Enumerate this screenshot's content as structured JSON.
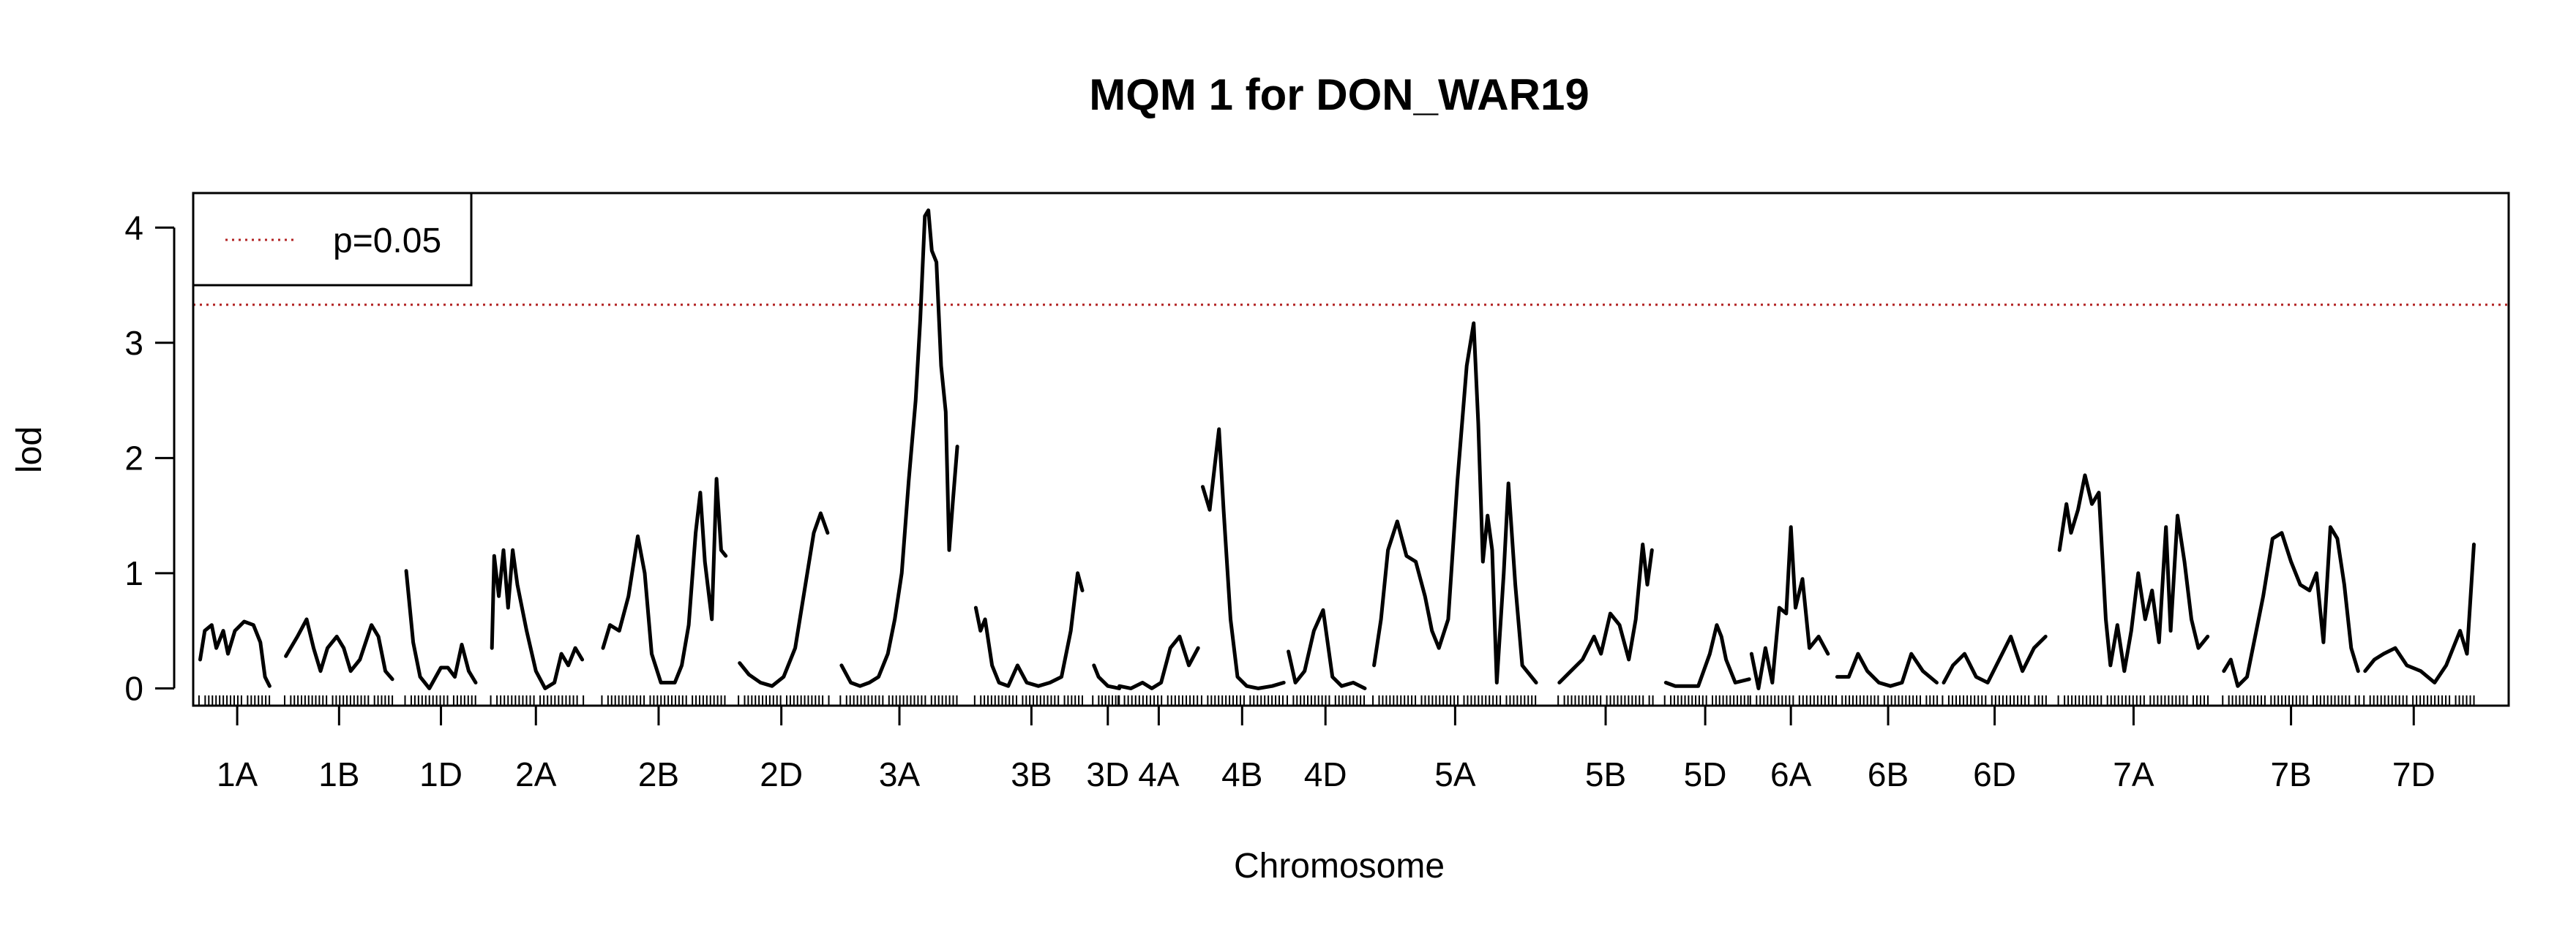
{
  "chart_data": {
    "type": "line",
    "title": "MQM 1 for DON_WAR19",
    "xlabel": "Chromosome",
    "ylabel": "lod",
    "ylim": [
      -0.15,
      4.3
    ],
    "yticks": [
      0,
      1,
      2,
      3,
      4
    ],
    "x_unit": "position index along genome (0–100)",
    "xlim": [
      0,
      100
    ],
    "grid": false,
    "legend": {
      "placement": "top-left",
      "entries": [
        {
          "label": "p=0.05",
          "color": "#b22222",
          "style": "dotted"
        }
      ]
    },
    "threshold": {
      "label": "p=0.05",
      "value": 3.33,
      "color": "#b22222"
    },
    "chromosomes": [
      {
        "name": "1A",
        "start": 0.3,
        "end": 3.3,
        "label_x": 1.9,
        "points": [
          [
            0.3,
            0.25
          ],
          [
            0.5,
            0.5
          ],
          [
            0.8,
            0.55
          ],
          [
            1.0,
            0.35
          ],
          [
            1.3,
            0.5
          ],
          [
            1.5,
            0.3
          ],
          [
            1.8,
            0.5
          ],
          [
            2.2,
            0.58
          ],
          [
            2.6,
            0.55
          ],
          [
            2.9,
            0.4
          ],
          [
            3.1,
            0.1
          ],
          [
            3.3,
            0.02
          ]
        ]
      },
      {
        "name": "1B",
        "start": 4.0,
        "end": 8.6,
        "label_x": 6.3,
        "points": [
          [
            4.0,
            0.28
          ],
          [
            4.5,
            0.45
          ],
          [
            4.9,
            0.6
          ],
          [
            5.2,
            0.35
          ],
          [
            5.5,
            0.15
          ],
          [
            5.8,
            0.35
          ],
          [
            6.2,
            0.45
          ],
          [
            6.5,
            0.35
          ],
          [
            6.8,
            0.15
          ],
          [
            7.2,
            0.25
          ],
          [
            7.7,
            0.55
          ],
          [
            8.0,
            0.45
          ],
          [
            8.3,
            0.15
          ],
          [
            8.6,
            0.08
          ]
        ]
      },
      {
        "name": "1D",
        "start": 9.2,
        "end": 12.2,
        "label_x": 10.7,
        "points": [
          [
            9.2,
            1.02
          ],
          [
            9.5,
            0.4
          ],
          [
            9.8,
            0.1
          ],
          [
            10.2,
            0.0
          ],
          [
            10.7,
            0.18
          ],
          [
            11.0,
            0.18
          ],
          [
            11.3,
            0.1
          ],
          [
            11.6,
            0.38
          ],
          [
            11.9,
            0.15
          ],
          [
            12.2,
            0.05
          ]
        ]
      },
      {
        "name": "2A",
        "start": 12.9,
        "end": 16.8,
        "label_x": 14.8,
        "points": [
          [
            12.9,
            0.35
          ],
          [
            13.0,
            1.15
          ],
          [
            13.2,
            0.8
          ],
          [
            13.4,
            1.2
          ],
          [
            13.6,
            0.7
          ],
          [
            13.8,
            1.2
          ],
          [
            14.0,
            0.9
          ],
          [
            14.4,
            0.5
          ],
          [
            14.8,
            0.15
          ],
          [
            15.2,
            0.0
          ],
          [
            15.6,
            0.05
          ],
          [
            15.9,
            0.3
          ],
          [
            16.2,
            0.2
          ],
          [
            16.5,
            0.35
          ],
          [
            16.8,
            0.25
          ]
        ]
      },
      {
        "name": "2B",
        "start": 17.7,
        "end": 23.0,
        "label_x": 20.1,
        "points": [
          [
            17.7,
            0.35
          ],
          [
            18.0,
            0.55
          ],
          [
            18.4,
            0.5
          ],
          [
            18.8,
            0.8
          ],
          [
            19.2,
            1.32
          ],
          [
            19.5,
            1.0
          ],
          [
            19.8,
            0.3
          ],
          [
            20.2,
            0.05
          ],
          [
            20.8,
            0.05
          ],
          [
            21.1,
            0.2
          ],
          [
            21.4,
            0.55
          ],
          [
            21.7,
            1.35
          ],
          [
            21.9,
            1.7
          ],
          [
            22.1,
            1.1
          ],
          [
            22.4,
            0.6
          ],
          [
            22.6,
            1.82
          ],
          [
            22.8,
            1.2
          ],
          [
            23.0,
            1.15
          ]
        ]
      },
      {
        "name": "2D",
        "start": 23.6,
        "end": 27.4,
        "label_x": 25.4,
        "points": [
          [
            23.6,
            0.22
          ],
          [
            24.0,
            0.12
          ],
          [
            24.5,
            0.05
          ],
          [
            25.0,
            0.02
          ],
          [
            25.5,
            0.1
          ],
          [
            26.0,
            0.35
          ],
          [
            26.4,
            0.85
          ],
          [
            26.8,
            1.35
          ],
          [
            27.1,
            1.52
          ],
          [
            27.4,
            1.35
          ]
        ]
      },
      {
        "name": "3A",
        "start": 28.0,
        "end": 33.0,
        "label_x": 30.5,
        "points": [
          [
            28.0,
            0.2
          ],
          [
            28.4,
            0.05
          ],
          [
            28.8,
            0.02
          ],
          [
            29.2,
            0.05
          ],
          [
            29.6,
            0.1
          ],
          [
            30.0,
            0.3
          ],
          [
            30.3,
            0.6
          ],
          [
            30.6,
            1.0
          ],
          [
            30.9,
            1.8
          ],
          [
            31.2,
            2.5
          ],
          [
            31.4,
            3.2
          ],
          [
            31.6,
            4.1
          ],
          [
            31.75,
            4.15
          ],
          [
            31.9,
            3.8
          ],
          [
            32.1,
            3.7
          ],
          [
            32.3,
            2.8
          ],
          [
            32.5,
            2.4
          ],
          [
            32.65,
            1.2
          ],
          [
            32.8,
            1.6
          ],
          [
            33.0,
            2.1
          ]
        ]
      },
      {
        "name": "3B",
        "start": 33.8,
        "end": 38.4,
        "label_x": 36.2,
        "points": [
          [
            33.8,
            0.7
          ],
          [
            34.0,
            0.5
          ],
          [
            34.2,
            0.6
          ],
          [
            34.5,
            0.2
          ],
          [
            34.8,
            0.05
          ],
          [
            35.2,
            0.02
          ],
          [
            35.6,
            0.2
          ],
          [
            36.0,
            0.05
          ],
          [
            36.5,
            0.02
          ],
          [
            37.0,
            0.05
          ],
          [
            37.5,
            0.1
          ],
          [
            37.9,
            0.5
          ],
          [
            38.2,
            1.0
          ],
          [
            38.4,
            0.85
          ]
        ]
      },
      {
        "name": "3D",
        "start": 38.9,
        "end": 40.0,
        "label_x": 39.5,
        "points": [
          [
            38.9,
            0.2
          ],
          [
            39.1,
            0.1
          ],
          [
            39.5,
            0.02
          ],
          [
            40.0,
            0.0
          ]
        ]
      },
      {
        "name": "4A",
        "start": 40.0,
        "end": 43.4,
        "label_x": 41.7,
        "points": [
          [
            40.0,
            0.02
          ],
          [
            40.5,
            0.0
          ],
          [
            41.0,
            0.05
          ],
          [
            41.4,
            0.0
          ],
          [
            41.8,
            0.05
          ],
          [
            42.2,
            0.35
          ],
          [
            42.6,
            0.45
          ],
          [
            43.0,
            0.2
          ],
          [
            43.4,
            0.35
          ]
        ]
      },
      {
        "name": "4B",
        "start": 43.6,
        "end": 47.1,
        "label_x": 45.3,
        "points": [
          [
            43.6,
            1.75
          ],
          [
            43.9,
            1.55
          ],
          [
            44.1,
            1.9
          ],
          [
            44.3,
            2.25
          ],
          [
            44.5,
            1.55
          ],
          [
            44.8,
            0.6
          ],
          [
            45.1,
            0.1
          ],
          [
            45.5,
            0.02
          ],
          [
            46.0,
            0.0
          ],
          [
            46.6,
            0.02
          ],
          [
            47.1,
            0.05
          ]
        ]
      },
      {
        "name": "4D",
        "start": 47.3,
        "end": 50.6,
        "label_x": 48.9,
        "points": [
          [
            47.3,
            0.32
          ],
          [
            47.6,
            0.05
          ],
          [
            48.0,
            0.15
          ],
          [
            48.4,
            0.5
          ],
          [
            48.8,
            0.68
          ],
          [
            49.2,
            0.1
          ],
          [
            49.6,
            0.02
          ],
          [
            50.1,
            0.05
          ],
          [
            50.6,
            0.0
          ]
        ]
      },
      {
        "name": "5A",
        "start": 51.0,
        "end": 58.0,
        "label_x": 54.5,
        "points": [
          [
            51.0,
            0.2
          ],
          [
            51.3,
            0.6
          ],
          [
            51.6,
            1.2
          ],
          [
            52.0,
            1.45
          ],
          [
            52.4,
            1.15
          ],
          [
            52.8,
            1.1
          ],
          [
            53.2,
            0.8
          ],
          [
            53.5,
            0.5
          ],
          [
            53.8,
            0.35
          ],
          [
            54.2,
            0.6
          ],
          [
            54.6,
            1.8
          ],
          [
            55.0,
            2.8
          ],
          [
            55.3,
            3.17
          ],
          [
            55.5,
            2.3
          ],
          [
            55.7,
            1.1
          ],
          [
            55.9,
            1.5
          ],
          [
            56.1,
            1.2
          ],
          [
            56.3,
            0.05
          ],
          [
            56.6,
            1.0
          ],
          [
            56.8,
            1.78
          ],
          [
            57.1,
            0.9
          ],
          [
            57.4,
            0.2
          ],
          [
            58.0,
            0.05
          ]
        ]
      },
      {
        "name": "5B",
        "start": 59.0,
        "end": 63.0,
        "label_x": 61.0,
        "points": [
          [
            59.0,
            0.05
          ],
          [
            59.5,
            0.15
          ],
          [
            60.0,
            0.25
          ],
          [
            60.5,
            0.45
          ],
          [
            60.8,
            0.3
          ],
          [
            61.2,
            0.65
          ],
          [
            61.6,
            0.55
          ],
          [
            62.0,
            0.25
          ],
          [
            62.3,
            0.6
          ],
          [
            62.6,
            1.25
          ],
          [
            62.8,
            0.9
          ],
          [
            63.0,
            1.2
          ]
        ]
      },
      {
        "name": "5D",
        "start": 63.6,
        "end": 67.2,
        "label_x": 65.3,
        "points": [
          [
            63.6,
            0.05
          ],
          [
            64.0,
            0.02
          ],
          [
            64.5,
            0.02
          ],
          [
            65.0,
            0.02
          ],
          [
            65.5,
            0.3
          ],
          [
            65.8,
            0.55
          ],
          [
            66.0,
            0.45
          ],
          [
            66.2,
            0.25
          ],
          [
            66.6,
            0.05
          ],
          [
            67.2,
            0.08
          ]
        ]
      },
      {
        "name": "6A",
        "start": 67.3,
        "end": 71.0,
        "label_x": 69.0,
        "points": [
          [
            67.3,
            0.3
          ],
          [
            67.6,
            0.0
          ],
          [
            67.9,
            0.35
          ],
          [
            68.2,
            0.05
          ],
          [
            68.5,
            0.7
          ],
          [
            68.8,
            0.65
          ],
          [
            69.0,
            1.4
          ],
          [
            69.2,
            0.7
          ],
          [
            69.5,
            0.95
          ],
          [
            69.8,
            0.35
          ],
          [
            70.2,
            0.45
          ],
          [
            70.6,
            0.3
          ]
        ]
      },
      {
        "name": "6B",
        "start": 71.0,
        "end": 75.3,
        "label_x": 73.2,
        "points": [
          [
            71.0,
            0.1
          ],
          [
            71.5,
            0.1
          ],
          [
            71.9,
            0.3
          ],
          [
            72.3,
            0.15
          ],
          [
            72.8,
            0.05
          ],
          [
            73.3,
            0.02
          ],
          [
            73.8,
            0.05
          ],
          [
            74.2,
            0.3
          ],
          [
            74.7,
            0.15
          ],
          [
            75.3,
            0.05
          ]
        ]
      },
      {
        "name": "6D",
        "start": 75.6,
        "end": 80.0,
        "label_x": 77.8,
        "points": [
          [
            75.6,
            0.05
          ],
          [
            76.0,
            0.2
          ],
          [
            76.5,
            0.3
          ],
          [
            77.0,
            0.1
          ],
          [
            77.5,
            0.05
          ],
          [
            78.0,
            0.25
          ],
          [
            78.5,
            0.45
          ],
          [
            79.0,
            0.15
          ],
          [
            79.5,
            0.35
          ],
          [
            80.0,
            0.45
          ]
        ]
      },
      {
        "name": "7A",
        "start": 80.6,
        "end": 87.0,
        "label_x": 83.8,
        "points": [
          [
            80.6,
            1.2
          ],
          [
            80.9,
            1.6
          ],
          [
            81.1,
            1.35
          ],
          [
            81.4,
            1.55
          ],
          [
            81.7,
            1.85
          ],
          [
            82.0,
            1.6
          ],
          [
            82.3,
            1.7
          ],
          [
            82.6,
            0.6
          ],
          [
            82.8,
            0.2
          ],
          [
            83.1,
            0.55
          ],
          [
            83.4,
            0.15
          ],
          [
            83.7,
            0.5
          ],
          [
            84.0,
            1.0
          ],
          [
            84.3,
            0.6
          ],
          [
            84.6,
            0.85
          ],
          [
            84.9,
            0.4
          ],
          [
            85.2,
            1.4
          ],
          [
            85.4,
            0.5
          ],
          [
            85.7,
            1.5
          ],
          [
            86.0,
            1.1
          ],
          [
            86.3,
            0.6
          ],
          [
            86.6,
            0.35
          ],
          [
            87.0,
            0.45
          ]
        ]
      },
      {
        "name": "7B",
        "start": 87.7,
        "end": 93.5,
        "label_x": 90.6,
        "points": [
          [
            87.7,
            0.15
          ],
          [
            88.0,
            0.25
          ],
          [
            88.3,
            0.02
          ],
          [
            88.7,
            0.1
          ],
          [
            89.0,
            0.4
          ],
          [
            89.4,
            0.8
          ],
          [
            89.8,
            1.3
          ],
          [
            90.2,
            1.35
          ],
          [
            90.6,
            1.1
          ],
          [
            91.0,
            0.9
          ],
          [
            91.4,
            0.85
          ],
          [
            91.7,
            1.0
          ],
          [
            92.0,
            0.4
          ],
          [
            92.3,
            1.4
          ],
          [
            92.6,
            1.3
          ],
          [
            92.9,
            0.9
          ],
          [
            93.2,
            0.35
          ],
          [
            93.5,
            0.15
          ]
        ]
      },
      {
        "name": "7D",
        "start": 93.8,
        "end": 98.5,
        "label_x": 95.9,
        "points": [
          [
            93.8,
            0.15
          ],
          [
            94.2,
            0.25
          ],
          [
            94.6,
            0.3
          ],
          [
            95.1,
            0.35
          ],
          [
            95.6,
            0.2
          ],
          [
            96.2,
            0.15
          ],
          [
            96.8,
            0.05
          ],
          [
            97.3,
            0.2
          ],
          [
            97.9,
            0.5
          ],
          [
            98.2,
            0.3
          ],
          [
            98.5,
            1.25
          ]
        ]
      }
    ]
  }
}
